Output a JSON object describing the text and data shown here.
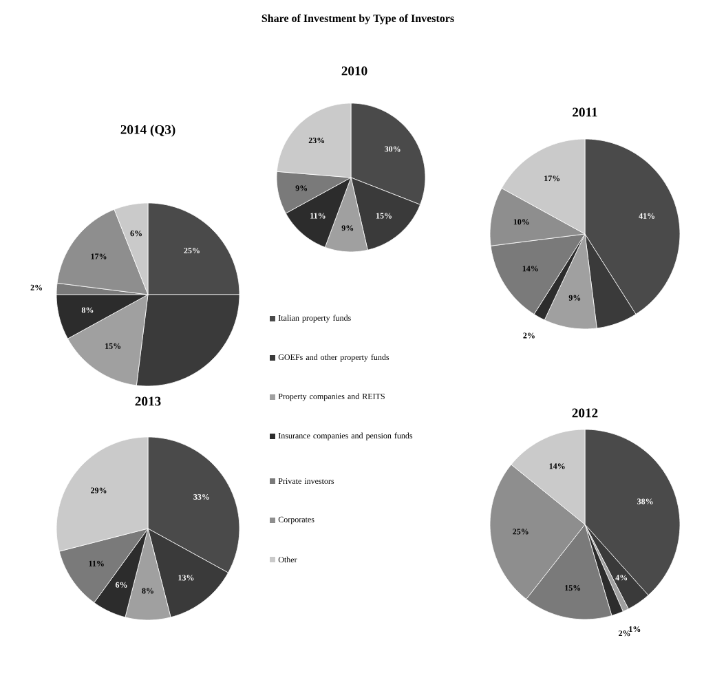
{
  "chart_data": [
    {
      "type": "pie",
      "title": "Share of Investment by Type of Investors",
      "subtitle": "2010",
      "legend": "bottom",
      "categories": [
        "Italian property funds",
        "GOEFs and other property funds",
        "Property companies and REITS",
        "Insurance companies and pension funds",
        "Private investors",
        "Corporates",
        "Other"
      ],
      "values": [
        30,
        15,
        9,
        11,
        9,
        null,
        23
      ],
      "value_labels": [
        "30%",
        "15%",
        "9%",
        "11%",
        "9%",
        null,
        "23%"
      ],
      "colors": [
        "#4a4a4a",
        "#3a3a3a",
        "#a0a0a0",
        "#2c2c2c",
        "#7a7a7a",
        "#8e8e8e",
        "#cacaca"
      ]
    },
    {
      "type": "pie",
      "title": "2014 (Q3)",
      "values": [
        25,
        27,
        15,
        8,
        2,
        17,
        6
      ],
      "value_labels": [
        "25%",
        null,
        "15%",
        "8%",
        "2%",
        "17%",
        "6%"
      ],
      "colors": [
        "#4a4a4a",
        "#3a3a3a",
        "#a0a0a0",
        "#2c2c2c",
        "#7a7a7a",
        "#8e8e8e",
        "#cacaca"
      ]
    },
    {
      "type": "pie",
      "title": "2011",
      "values": [
        41,
        7,
        9,
        2,
        14,
        10,
        17
      ],
      "value_labels": [
        "41%",
        null,
        "9%",
        "2%",
        "14%",
        "10%",
        "17%"
      ],
      "colors": [
        "#4a4a4a",
        "#3a3a3a",
        "#a0a0a0",
        "#2c2c2c",
        "#7a7a7a",
        "#8e8e8e",
        "#cacaca"
      ]
    },
    {
      "type": "pie",
      "title": "2013",
      "values": [
        33,
        13,
        8,
        6,
        11,
        null,
        29
      ],
      "value_labels": [
        "33%",
        "13%",
        "8%",
        "6%",
        "11%",
        null,
        "29%"
      ],
      "colors": [
        "#4a4a4a",
        "#3a3a3a",
        "#a0a0a0",
        "#2c2c2c",
        "#7a7a7a",
        "#8e8e8e",
        "#cacaca"
      ]
    },
    {
      "type": "pie",
      "title": "2012",
      "values": [
        38,
        4,
        1,
        2,
        15,
        25,
        14
      ],
      "value_labels": [
        "38%",
        "4%",
        "1%",
        "2%",
        "15%",
        "25%",
        "14%"
      ],
      "colors": [
        "#4a4a4a",
        "#3a3a3a",
        "#a0a0a0",
        "#2c2c2c",
        "#7a7a7a",
        "#8e8e8e",
        "#cacaca"
      ]
    }
  ]
}
